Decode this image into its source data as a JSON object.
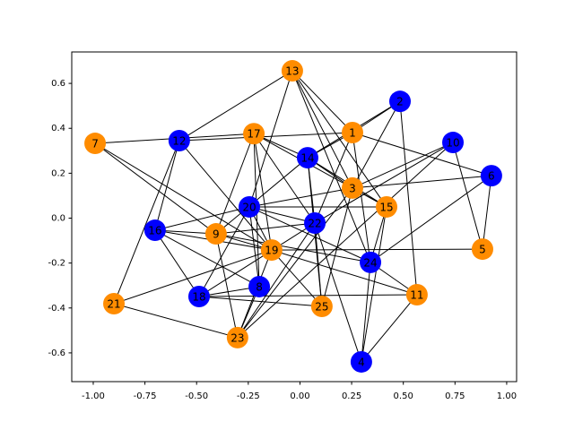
{
  "chart_data": {
    "type": "network",
    "xlim": [
      -1.104,
      1.048
    ],
    "ylim": [
      -0.728,
      0.74
    ],
    "xticks": [
      {
        "value": -1,
        "label": "-1.00"
      },
      {
        "value": -0.75,
        "label": "-0.75"
      },
      {
        "value": -0.5,
        "label": "-0.50"
      },
      {
        "value": -0.25,
        "label": "-0.25"
      },
      {
        "value": 0,
        "label": "0.00"
      },
      {
        "value": 0.25,
        "label": "0.25"
      },
      {
        "value": 0.5,
        "label": "0.50"
      },
      {
        "value": 0.75,
        "label": "0.75"
      },
      {
        "value": 1,
        "label": "1.00"
      }
    ],
    "yticks": [
      -0.6,
      -0.4,
      -0.2,
      {
        "value": 0,
        "label": "0.0"
      },
      0.2,
      0.4,
      0.6
    ],
    "nodes": [
      {
        "label": "1",
        "x": 0.254,
        "y": 0.381,
        "color": "#ff8c00"
      },
      {
        "label": "2",
        "x": 0.484,
        "y": 0.52,
        "color": "#0000ff"
      },
      {
        "label": "3",
        "x": 0.254,
        "y": 0.134,
        "color": "#ff8c00"
      },
      {
        "label": "4",
        "x": 0.297,
        "y": -0.64,
        "color": "#0000ff"
      },
      {
        "label": "5",
        "x": 0.883,
        "y": -0.138,
        "color": "#ff8c00"
      },
      {
        "label": "6",
        "x": 0.926,
        "y": 0.189,
        "color": "#0000ff"
      },
      {
        "label": "7",
        "x": -0.991,
        "y": 0.333,
        "color": "#ff8c00"
      },
      {
        "label": "8",
        "x": -0.197,
        "y": -0.305,
        "color": "#0000ff"
      },
      {
        "label": "9",
        "x": -0.406,
        "y": -0.07,
        "color": "#ff8c00"
      },
      {
        "label": "10",
        "x": 0.74,
        "y": 0.337,
        "color": "#0000ff"
      },
      {
        "label": "11",
        "x": 0.566,
        "y": -0.341,
        "color": "#ff8c00"
      },
      {
        "label": "12",
        "x": -0.584,
        "y": 0.345,
        "color": "#0000ff"
      },
      {
        "label": "13",
        "x": -0.037,
        "y": 0.656,
        "color": "#ff8c00"
      },
      {
        "label": "14",
        "x": 0.037,
        "y": 0.269,
        "color": "#0000ff"
      },
      {
        "label": "15",
        "x": 0.419,
        "y": 0.05,
        "color": "#ff8c00"
      },
      {
        "label": "16",
        "x": -0.701,
        "y": -0.054,
        "color": "#0000ff"
      },
      {
        "label": "17",
        "x": -0.223,
        "y": 0.376,
        "color": "#ff8c00"
      },
      {
        "label": "18",
        "x": -0.488,
        "y": -0.349,
        "color": "#0000ff"
      },
      {
        "label": "19",
        "x": -0.137,
        "y": -0.142,
        "color": "#ff8c00"
      },
      {
        "label": "20",
        "x": -0.245,
        "y": 0.05,
        "color": "#0000ff"
      },
      {
        "label": "21",
        "x": -0.9,
        "y": -0.381,
        "color": "#ff8c00"
      },
      {
        "label": "22",
        "x": 0.072,
        "y": -0.022,
        "color": "#0000ff"
      },
      {
        "label": "23",
        "x": -0.302,
        "y": -0.532,
        "color": "#ff8c00"
      },
      {
        "label": "24",
        "x": 0.341,
        "y": -0.197,
        "color": "#0000ff"
      },
      {
        "label": "25",
        "x": 0.106,
        "y": -0.393,
        "color": "#ff8c00"
      }
    ],
    "edges": [
      [
        "7",
        "17"
      ],
      [
        "7",
        "9"
      ],
      [
        "7",
        "19"
      ],
      [
        "12",
        "13"
      ],
      [
        "12",
        "1"
      ],
      [
        "12",
        "21"
      ],
      [
        "12",
        "16"
      ],
      [
        "12",
        "19"
      ],
      [
        "13",
        "1"
      ],
      [
        "13",
        "3"
      ],
      [
        "13",
        "15"
      ],
      [
        "13",
        "20"
      ],
      [
        "13",
        "24"
      ],
      [
        "17",
        "14"
      ],
      [
        "17",
        "8"
      ],
      [
        "17",
        "19"
      ],
      [
        "17",
        "22"
      ],
      [
        "17",
        "9"
      ],
      [
        "17",
        "15"
      ],
      [
        "1",
        "2"
      ],
      [
        "1",
        "14"
      ],
      [
        "1",
        "6"
      ],
      [
        "1",
        "22"
      ],
      [
        "1",
        "24"
      ],
      [
        "2",
        "14"
      ],
      [
        "2",
        "11"
      ],
      [
        "2",
        "3"
      ],
      [
        "14",
        "3"
      ],
      [
        "14",
        "15"
      ],
      [
        "14",
        "22"
      ],
      [
        "14",
        "25"
      ],
      [
        "14",
        "9"
      ],
      [
        "10",
        "3"
      ],
      [
        "10",
        "5"
      ],
      [
        "10",
        "22"
      ],
      [
        "10",
        "23"
      ],
      [
        "6",
        "3"
      ],
      [
        "6",
        "5"
      ],
      [
        "6",
        "24"
      ],
      [
        "3",
        "15"
      ],
      [
        "3",
        "20"
      ],
      [
        "3",
        "25"
      ],
      [
        "3",
        "23"
      ],
      [
        "15",
        "24"
      ],
      [
        "15",
        "4"
      ],
      [
        "15",
        "20"
      ],
      [
        "20",
        "16"
      ],
      [
        "20",
        "18"
      ],
      [
        "20",
        "8"
      ],
      [
        "20",
        "19"
      ],
      [
        "20",
        "22"
      ],
      [
        "20",
        "24"
      ],
      [
        "16",
        "9"
      ],
      [
        "16",
        "18"
      ],
      [
        "16",
        "8"
      ],
      [
        "16",
        "19"
      ],
      [
        "9",
        "19"
      ],
      [
        "9",
        "22"
      ],
      [
        "9",
        "24"
      ],
      [
        "9",
        "23"
      ],
      [
        "19",
        "5"
      ],
      [
        "19",
        "25"
      ],
      [
        "19",
        "11"
      ],
      [
        "19",
        "21"
      ],
      [
        "19",
        "23"
      ],
      [
        "22",
        "23"
      ],
      [
        "22",
        "25"
      ],
      [
        "22",
        "4"
      ],
      [
        "22",
        "18"
      ],
      [
        "24",
        "4"
      ],
      [
        "24",
        "11"
      ],
      [
        "18",
        "11"
      ],
      [
        "18",
        "8"
      ],
      [
        "18",
        "25"
      ],
      [
        "21",
        "23"
      ],
      [
        "23",
        "8"
      ],
      [
        "4",
        "11"
      ]
    ]
  }
}
